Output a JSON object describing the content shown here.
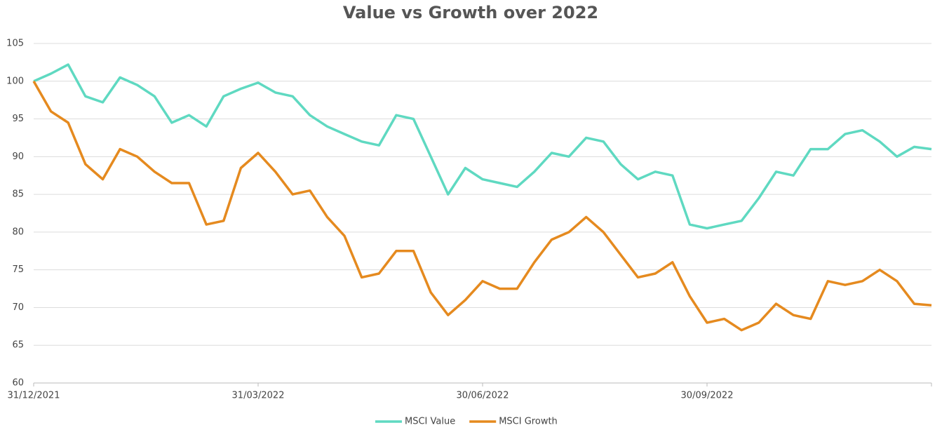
{
  "chart_data": {
    "type": "line",
    "title": "Value vs Growth over 2022",
    "categories": [
      "31/12/2021",
      null,
      null,
      null,
      null,
      null,
      null,
      null,
      null,
      null,
      null,
      null,
      null,
      "31/03/2022",
      null,
      null,
      null,
      null,
      null,
      null,
      null,
      null,
      null,
      null,
      null,
      null,
      "30/06/2022",
      null,
      null,
      null,
      null,
      null,
      null,
      null,
      null,
      null,
      null,
      null,
      null,
      "30/09/2022",
      null,
      null,
      null,
      null,
      null,
      null,
      null,
      null,
      null,
      null,
      null,
      null,
      null
    ],
    "series": [
      {
        "name": "MSCI Value",
        "color": "#5fd9c1",
        "values": [
          100,
          101,
          102.2,
          98,
          97.2,
          100.5,
          99.5,
          98,
          94.5,
          95.5,
          94,
          98,
          99,
          99.8,
          98.5,
          98,
          95.5,
          94,
          93,
          92,
          91.5,
          95.5,
          95,
          90,
          85,
          88.5,
          87,
          86.5,
          86,
          88,
          90.5,
          90,
          92.5,
          92,
          89,
          87,
          88,
          87.5,
          81,
          80.5,
          81,
          81.5,
          84.5,
          88,
          87.5,
          91,
          91,
          93,
          93.5,
          92,
          90,
          91.3,
          91
        ]
      },
      {
        "name": "MSCI Growth",
        "color": "#e58a1f",
        "values": [
          100,
          96,
          94.5,
          89,
          87,
          91,
          90,
          88,
          86.5,
          86.5,
          81,
          81.5,
          88.5,
          90.5,
          88,
          85,
          85.5,
          82,
          79.5,
          74,
          74.5,
          77.5,
          77.5,
          72,
          69,
          71,
          73.5,
          72.5,
          72.5,
          76,
          79,
          80,
          82,
          80,
          77,
          74,
          74.5,
          76,
          71.5,
          68,
          68.5,
          67,
          68,
          70.5,
          69,
          68.5,
          73.5,
          73,
          73.5,
          75,
          73.5,
          70.5,
          70.3
        ]
      }
    ],
    "ylim": [
      60,
      105
    ],
    "yticks": [
      60,
      65,
      70,
      75,
      80,
      85,
      90,
      95,
      100,
      105
    ],
    "grid": true,
    "legend": "bottom"
  }
}
